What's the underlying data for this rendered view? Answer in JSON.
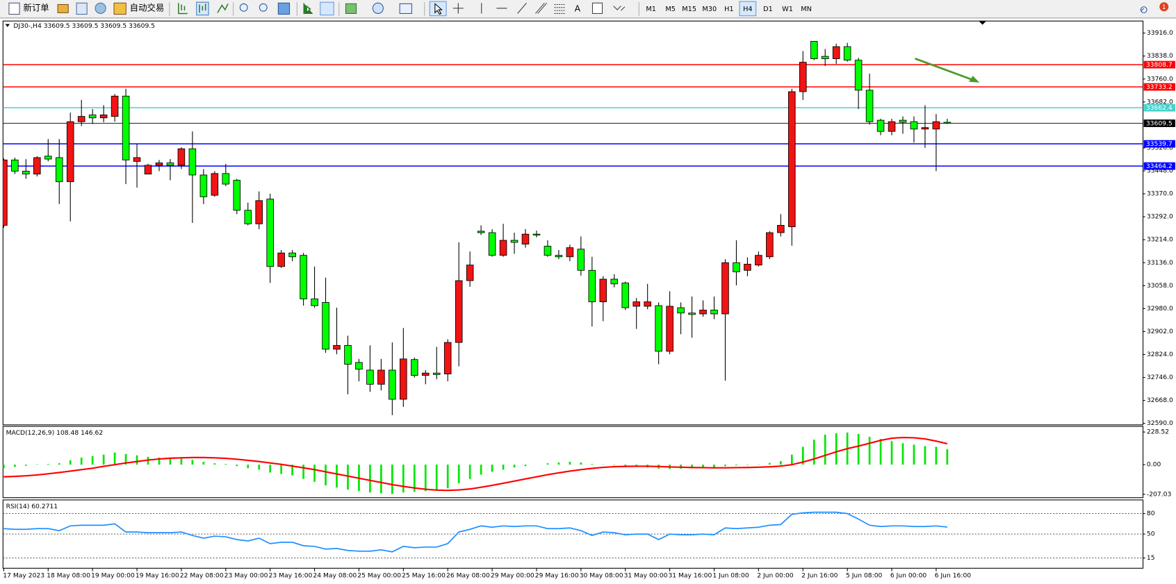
{
  "toolbar": {
    "new_order": "新订单",
    "auto_trading": "自动交易",
    "text_tool": "A",
    "timeframes": [
      "M1",
      "M5",
      "M15",
      "M30",
      "H1",
      "H4",
      "D1",
      "W1",
      "MN"
    ],
    "active_timeframe": "H4",
    "notifications": "1"
  },
  "chart_data": [
    {
      "type": "candlestick",
      "title": "DJ30-,H4 33609.5 33609.5 33609.5 33609.5",
      "categories": [
        "17 May 2023",
        null,
        null,
        null,
        "18 May 08:00",
        null,
        null,
        null,
        "19 May 00:00",
        null,
        null,
        null,
        "19 May 16:00",
        null,
        null,
        null,
        "22 May 08:00",
        null,
        null,
        null,
        "23 May 00:00",
        null,
        null,
        null,
        "23 May 16:00",
        null,
        null,
        null,
        "24 May 08:00",
        null,
        null,
        null,
        "25 May 00:00",
        null,
        null,
        null,
        "25 May 16:00",
        null,
        null,
        null,
        "26 May 08:00",
        null,
        null,
        null,
        "29 May 00:00",
        null,
        null,
        null,
        "29 May 16:00",
        null,
        null,
        null,
        "30 May 08:00",
        null,
        null,
        null,
        "31 May 00:00",
        null,
        null,
        null,
        "31 May 16:00",
        null,
        null,
        null,
        "1 Jun 08:00",
        null,
        null,
        null,
        "2 Jun 00:00",
        null,
        null,
        null,
        "2 Jun 16:00",
        null,
        null,
        null,
        "5 Jun 08:00",
        null,
        null,
        null,
        "6 Jun 00:00",
        null,
        null,
        null,
        "6 Jun 16:00",
        null
      ],
      "open": [
        33263,
        33485,
        33447,
        33437,
        33498,
        33493,
        33411,
        33615,
        33638,
        33628,
        33633,
        33702,
        33480,
        33437,
        33467,
        33475,
        33467,
        33523,
        33434,
        33365,
        33439,
        33416,
        33314,
        33268,
        33352,
        33123,
        33169,
        33161,
        33013,
        33001,
        32842,
        32855,
        32797,
        32771,
        32723,
        32771,
        32672,
        32807,
        32753,
        32761,
        32758,
        32865,
        33075,
        33243,
        33238,
        33161,
        33212,
        33199,
        33233,
        33192,
        33161,
        33156,
        33182,
        33110,
        33003,
        33080,
        33067,
        32988,
        32988,
        32990,
        32835,
        32983,
        32965,
        32962,
        32975,
        32962,
        33136,
        33110,
        33128,
        33156,
        33238,
        33258,
        33717,
        33888,
        33837,
        33829,
        33870,
        33824,
        33722,
        33620,
        33582,
        33620,
        33615,
        33590,
        33590,
        33613
      ],
      "high": [
        33490,
        33493,
        33488,
        33498,
        33556,
        33556,
        33646,
        33689,
        33658,
        33671,
        33709,
        33727,
        33539,
        33472,
        33485,
        33488,
        33528,
        33582,
        33454,
        33447,
        33472,
        33421,
        33340,
        33378,
        33370,
        33179,
        33179,
        33169,
        33123,
        33085,
        32983,
        32888,
        32809,
        32855,
        32809,
        32865,
        32914,
        32814,
        32771,
        32850,
        32876,
        33205,
        33174,
        33263,
        33250,
        33268,
        33238,
        33250,
        33245,
        33212,
        33179,
        33197,
        33225,
        33156,
        33090,
        33097,
        33072,
        33016,
        33064,
        33001,
        33039,
        33001,
        33021,
        33008,
        33021,
        33148,
        33212,
        33154,
        33174,
        33243,
        33301,
        33727,
        33855,
        33888,
        33862,
        33880,
        33883,
        33832,
        33778,
        33625,
        33625,
        33633,
        33633,
        33671,
        33641,
        33625
      ],
      "low": [
        33255,
        33437,
        33421,
        33429,
        33480,
        33335,
        33276,
        33600,
        33607,
        33613,
        33615,
        33403,
        33391,
        33437,
        33447,
        33416,
        33454,
        33271,
        33335,
        33360,
        33396,
        33301,
        33263,
        33250,
        33067,
        33118,
        33141,
        32990,
        32983,
        32830,
        32825,
        32689,
        32733,
        32697,
        32702,
        32618,
        32646,
        32746,
        32723,
        32740,
        32733,
        32784,
        33054,
        33230,
        33156,
        33156,
        33166,
        33187,
        33222,
        33156,
        33148,
        33141,
        33092,
        32919,
        32937,
        33052,
        32975,
        32911,
        32978,
        32791,
        32825,
        32893,
        32881,
        32952,
        32944,
        32735,
        33059,
        33090,
        33123,
        33148,
        33225,
        33194,
        33689,
        33824,
        33804,
        33811,
        33819,
        33658,
        33605,
        33569,
        33569,
        33574,
        33544,
        33526,
        33447,
        33607
      ],
      "close": [
        33485,
        33447,
        33437,
        33493,
        33488,
        33411,
        33615,
        33633,
        33628,
        33638,
        33702,
        33485,
        33493,
        33467,
        33475,
        33467,
        33523,
        33434,
        33360,
        33439,
        33403,
        33314,
        33268,
        33347,
        33123,
        33169,
        33156,
        33013,
        32990,
        32842,
        32855,
        32791,
        32774,
        32723,
        32771,
        32672,
        32809,
        32753,
        32761,
        32756,
        32865,
        33075,
        33128,
        33238,
        33161,
        33212,
        33205,
        33233,
        33230,
        33161,
        33156,
        33187,
        33110,
        33003,
        33080,
        33064,
        32983,
        33003,
        33003,
        32835,
        32988,
        32965,
        32960,
        32975,
        32962,
        33136,
        33105,
        33131,
        33161,
        33238,
        33263,
        33717,
        33817,
        33829,
        33829,
        33870,
        33824,
        33722,
        33615,
        33582,
        33615,
        33613,
        33590,
        33595,
        33615,
        33609.5
      ],
      "up_color": "#f01414",
      "down_color": "#00ff00",
      "levels": [
        {
          "value": 33808.7,
          "color": "#ff0000"
        },
        {
          "value": 33733.2,
          "color": "#ff0000"
        },
        {
          "value": 33662.4,
          "color": "#48d1cc"
        },
        {
          "value": 33539.7,
          "color": "#0000ff"
        },
        {
          "value": 33464.2,
          "color": "#0000ff"
        }
      ],
      "last_price": 33609.5,
      "ylim": [
        32585,
        33957
      ],
      "yticks": [
        {
          "value": 33916,
          "label": "33916.0"
        },
        {
          "value": 33838,
          "label": "33838.0"
        },
        {
          "value": 33760,
          "label": "33760.0"
        },
        {
          "value": 33682,
          "label": "33682.0"
        },
        {
          "value": 33526,
          "label": "33526.0"
        },
        {
          "value": 33448,
          "label": "33448.0"
        },
        {
          "value": 33370,
          "label": "33370.0"
        },
        {
          "value": 33292,
          "label": "33292.0"
        },
        {
          "value": 33214,
          "label": "33214.0"
        },
        {
          "value": 33136,
          "label": "33136.0"
        },
        {
          "value": 33058,
          "label": "33058.0"
        },
        {
          "value": 32980,
          "label": "32980.0"
        },
        {
          "value": 32902,
          "label": "32902.0"
        },
        {
          "value": 32824,
          "label": "32824.0"
        },
        {
          "value": 32746,
          "label": "32746.0"
        },
        {
          "value": 32668,
          "label": "32668.0"
        },
        {
          "value": 32590,
          "label": "32590.0"
        }
      ]
    },
    {
      "type": "macd",
      "title": "MACD(12,26,9) 108.48 146.62",
      "histogram": {
        "color": "#00e600",
        "values": [
          -25,
          -15,
          -8,
          3,
          5,
          10,
          30,
          50,
          60,
          70,
          85,
          75,
          65,
          55,
          50,
          45,
          45,
          35,
          20,
          10,
          5,
          -10,
          -25,
          -35,
          -55,
          -65,
          -75,
          -100,
          -120,
          -145,
          -160,
          -175,
          -185,
          -195,
          -200,
          -205,
          -195,
          -190,
          -185,
          -180,
          -165,
          -130,
          -100,
          -70,
          -50,
          -35,
          -20,
          -10,
          0,
          10,
          15,
          20,
          15,
          5,
          2,
          -3,
          -10,
          -15,
          -20,
          -28,
          -30,
          -28,
          -26,
          -25,
          -22,
          -10,
          -5,
          -3,
          2,
          12,
          25,
          70,
          125,
          175,
          210,
          220,
          225,
          215,
          195,
          180,
          165,
          150,
          140,
          130,
          125,
          108.48
        ]
      },
      "signal": {
        "color": "#ff0000",
        "values": [
          -85,
          -82,
          -78,
          -72,
          -64,
          -55,
          -45,
          -35,
          -25,
          -12,
          0,
          12,
          22,
          32,
          40,
          45,
          48,
          50,
          50,
          48,
          44,
          38,
          30,
          22,
          12,
          2,
          -10,
          -22,
          -35,
          -50,
          -65,
          -80,
          -95,
          -110,
          -125,
          -140,
          -152,
          -163,
          -172,
          -178,
          -180,
          -177,
          -170,
          -158,
          -145,
          -130,
          -115,
          -100,
          -85,
          -70,
          -57,
          -45,
          -35,
          -26,
          -19,
          -14,
          -12,
          -11,
          -11,
          -13,
          -16,
          -18,
          -20,
          -21,
          -22,
          -22,
          -21,
          -20,
          -18,
          -15,
          -10,
          0,
          18,
          40,
          65,
          90,
          112,
          130,
          150,
          170,
          185,
          190,
          188,
          180,
          165,
          146.62
        ]
      },
      "ylim": [
        -231,
        268
      ],
      "yticks": [
        228.52,
        {
          "value": 0,
          "label": "0.00"
        },
        -207.03
      ]
    },
    {
      "type": "line",
      "title": "RSI(14) 60.2711",
      "color": "#1e90ff",
      "values": [
        58,
        57,
        57,
        58,
        58,
        55,
        62,
        63,
        63,
        63,
        65,
        53,
        53,
        52,
        52,
        52,
        53,
        48,
        44,
        47,
        46,
        42,
        40,
        44,
        36,
        38,
        38,
        33,
        32,
        28,
        29,
        26,
        25,
        25,
        27,
        24,
        32,
        30,
        31,
        31,
        36,
        53,
        57,
        62,
        60,
        62,
        61,
        62,
        62,
        58,
        58,
        59,
        55,
        48,
        53,
        52,
        49,
        50,
        50,
        42,
        50,
        49,
        49,
        50,
        49,
        59,
        58,
        59,
        60,
        63,
        64,
        79,
        81,
        82,
        82,
        82,
        80,
        72,
        63,
        61,
        62,
        62,
        61,
        61,
        62,
        60.2711
      ],
      "ylim": [
        0,
        100
      ],
      "yticks": [
        15,
        50,
        80
      ]
    }
  ]
}
